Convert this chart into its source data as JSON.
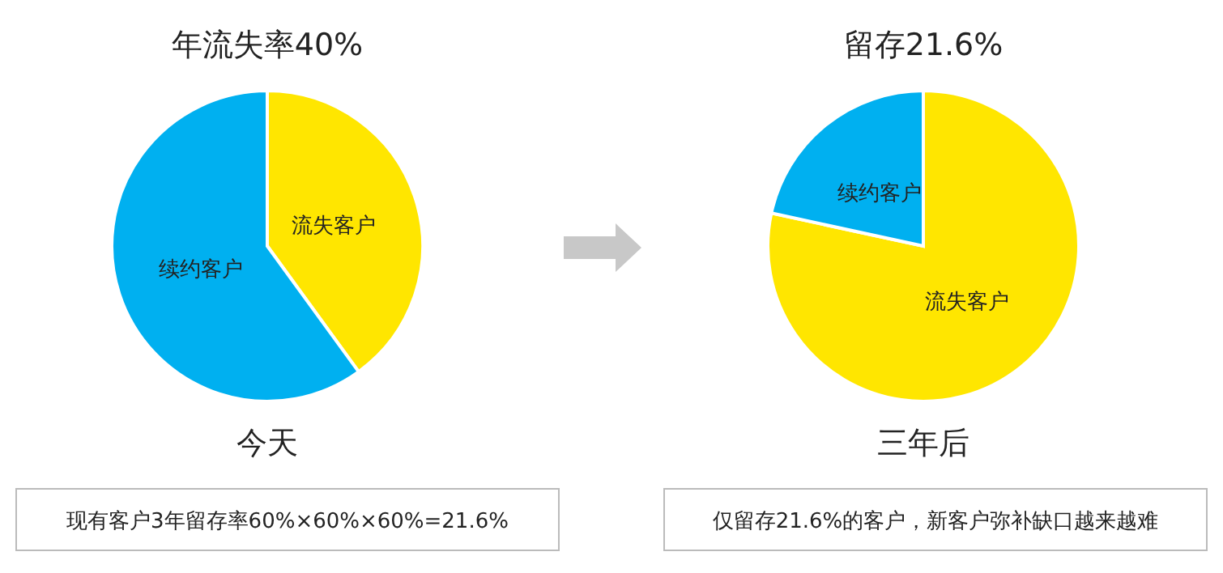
{
  "chart_data": [
    {
      "type": "pie",
      "title": "年流失率40%",
      "categories": [
        "流失客户",
        "续约客户"
      ],
      "values": [
        40,
        60
      ],
      "colors": [
        "#ffe600",
        "#00b0f0"
      ],
      "annotations": [
        "今天",
        "现有客户3年留存率60%×60%×60%=21.6%"
      ]
    },
    {
      "type": "pie",
      "title": "留存21.6%",
      "categories": [
        "流失客户",
        "续约客户"
      ],
      "values": [
        78.4,
        21.6
      ],
      "colors": [
        "#ffe600",
        "#00b0f0"
      ],
      "annotations": [
        "三年后",
        "仅留存21.6%的客户，新客户弥补缺口越来越难"
      ]
    }
  ]
}
